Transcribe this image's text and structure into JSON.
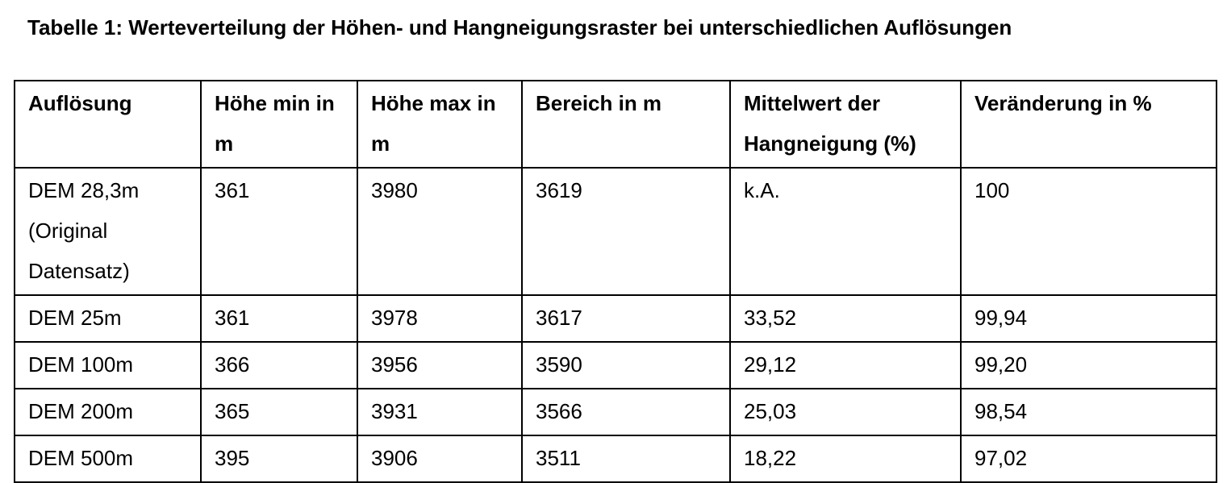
{
  "caption": "Tabelle 1: Werteverteilung der Höhen- und Hangneigungsraster bei unterschiedlichen Auflösungen",
  "columns": [
    "Auflösung",
    "Höhe min in m",
    "Höhe max in m",
    "Bereich in m",
    "Mittelwert der Hangneigung (%)",
    "Veränderung in %"
  ],
  "rows": [
    [
      "DEM 28,3m (Original Datensatz)",
      "361",
      "3980",
      "3619",
      "k.A.",
      "100"
    ],
    [
      "DEM 25m",
      "361",
      "3978",
      "3617",
      "33,52",
      "99,94"
    ],
    [
      "DEM 100m",
      "366",
      "3956",
      "3590",
      "29,12",
      "99,20"
    ],
    [
      "DEM 200m",
      "365",
      "3931",
      "3566",
      "25,03",
      "98,54"
    ],
    [
      "DEM 500m",
      "395",
      "3906",
      "3511",
      "18,22",
      "97,02"
    ]
  ]
}
